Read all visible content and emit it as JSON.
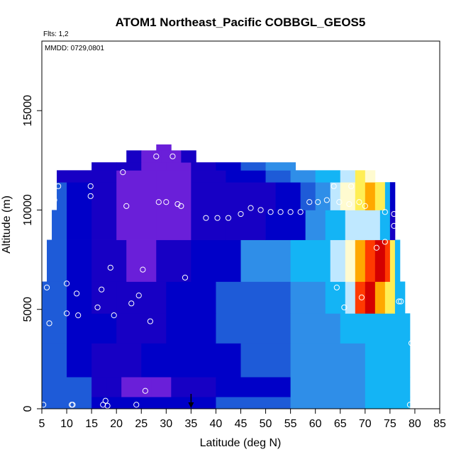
{
  "chart_data": {
    "type": "heatmap",
    "title": "ATOM1 Northeast_Pacific COBBGL_GEOS5",
    "notes": [
      "Flts: 1,2",
      "MMDD: 0729,0801"
    ],
    "xlabel": "Latitude (deg N)",
    "ylabel": "Altitude (m)",
    "xlim": [
      5,
      85
    ],
    "ylim": [
      0,
      18500
    ],
    "x_ticks": [
      5,
      10,
      15,
      20,
      25,
      30,
      35,
      40,
      45,
      50,
      55,
      60,
      65,
      70,
      75,
      80,
      85
    ],
    "y_ticks": [
      0,
      5000,
      10000,
      15000
    ],
    "grid": false,
    "colormap": {
      "description": "purple-blue-cyan-white-yellow-red",
      "stops": [
        "#6a1fd9",
        "#1700c4",
        "#0000c8",
        "#1e5bd8",
        "#2f8ee8",
        "#14b4f5",
        "#bfe8ff",
        "#fffbd0",
        "#ffee55",
        "#ffa800",
        "#ff3a00",
        "#d40000"
      ]
    },
    "layers": [
      {
        "alt": [
          0,
          600
        ],
        "x": [
          5,
          79
        ],
        "cells": [
          [
            5,
            3
          ],
          [
            10,
            3
          ],
          [
            15,
            2
          ],
          [
            22,
            2
          ],
          [
            30,
            2
          ],
          [
            40,
            3
          ],
          [
            55,
            4
          ],
          [
            70,
            5
          ],
          [
            79,
            5
          ]
        ]
      },
      {
        "alt": [
          600,
          1600
        ],
        "x": [
          5,
          79
        ],
        "cells": [
          [
            5,
            3
          ],
          [
            10,
            3
          ],
          [
            15,
            1
          ],
          [
            18,
            1
          ],
          [
            21,
            0
          ],
          [
            27,
            0
          ],
          [
            31,
            1
          ],
          [
            40,
            2
          ],
          [
            55,
            4
          ],
          [
            70,
            5
          ],
          [
            79,
            5
          ]
        ]
      },
      {
        "alt": [
          1600,
          3300
        ],
        "x": [
          5,
          79
        ],
        "cells": [
          [
            5,
            3
          ],
          [
            10,
            2
          ],
          [
            15,
            1
          ],
          [
            25,
            2
          ],
          [
            35,
            2
          ],
          [
            45,
            3
          ],
          [
            55,
            4
          ],
          [
            70,
            5
          ],
          [
            79,
            5
          ]
        ]
      },
      {
        "alt": [
          3300,
          4800
        ],
        "x": [
          5,
          79
        ],
        "cells": [
          [
            5,
            3
          ],
          [
            10,
            2
          ],
          [
            15,
            2
          ],
          [
            20,
            1
          ],
          [
            30,
            2
          ],
          [
            40,
            3
          ],
          [
            55,
            4
          ],
          [
            65,
            5
          ],
          [
            79,
            5
          ]
        ]
      },
      {
        "alt": [
          4800,
          6400
        ],
        "x": [
          5,
          78
        ],
        "cells": [
          [
            5,
            3
          ],
          [
            10,
            2
          ],
          [
            15,
            1
          ],
          [
            20,
            1
          ],
          [
            30,
            2
          ],
          [
            40,
            3
          ],
          [
            55,
            4
          ],
          [
            62,
            5
          ],
          [
            66,
            6
          ],
          [
            68,
            10
          ],
          [
            70,
            11
          ],
          [
            72,
            9
          ],
          [
            74,
            8
          ],
          [
            76,
            5
          ]
        ]
      },
      {
        "alt": [
          6400,
          8500
        ],
        "x": [
          6,
          77
        ],
        "cells": [
          [
            6,
            3
          ],
          [
            10,
            2
          ],
          [
            15,
            1
          ],
          [
            22,
            0
          ],
          [
            28,
            1
          ],
          [
            35,
            2
          ],
          [
            45,
            4
          ],
          [
            55,
            5
          ],
          [
            63,
            6
          ],
          [
            66,
            7
          ],
          [
            68,
            9
          ],
          [
            70,
            10
          ],
          [
            72,
            11
          ],
          [
            74,
            10
          ],
          [
            75,
            8
          ],
          [
            76,
            5
          ]
        ]
      },
      {
        "alt": [
          8500,
          10000
        ],
        "x": [
          7,
          76
        ],
        "cells": [
          [
            7,
            3
          ],
          [
            10,
            2
          ],
          [
            15,
            1
          ],
          [
            20,
            0
          ],
          [
            28,
            0
          ],
          [
            35,
            1
          ],
          [
            42,
            1
          ],
          [
            50,
            2
          ],
          [
            58,
            4
          ],
          [
            62,
            5
          ],
          [
            66,
            6
          ],
          [
            70,
            6
          ],
          [
            73,
            5
          ],
          [
            75,
            1
          ]
        ]
      },
      {
        "alt": [
          10000,
          11400
        ],
        "x": [
          8,
          76
        ],
        "cells": [
          [
            8,
            3
          ],
          [
            10,
            2
          ],
          [
            15,
            1
          ],
          [
            20,
            0
          ],
          [
            28,
            0
          ],
          [
            35,
            1
          ],
          [
            45,
            1
          ],
          [
            52,
            2
          ],
          [
            57,
            3
          ],
          [
            60,
            4
          ],
          [
            63,
            6
          ],
          [
            65,
            7
          ],
          [
            68,
            8
          ],
          [
            70,
            9
          ],
          [
            72,
            8
          ],
          [
            74,
            5
          ],
          [
            75,
            2
          ]
        ]
      },
      {
        "alt": [
          11400,
          12000
        ],
        "x": [
          8,
          72
        ],
        "cells": [
          [
            8,
            1
          ],
          [
            15,
            1
          ],
          [
            20,
            0
          ],
          [
            28,
            0
          ],
          [
            35,
            1
          ],
          [
            42,
            2
          ],
          [
            50,
            3
          ],
          [
            55,
            4
          ],
          [
            60,
            5
          ],
          [
            65,
            6
          ],
          [
            68,
            8
          ],
          [
            70,
            7
          ]
        ]
      },
      {
        "alt": [
          12000,
          12400
        ],
        "x": [
          15,
          56
        ],
        "cells": [
          [
            15,
            1
          ],
          [
            20,
            1
          ],
          [
            25,
            0
          ],
          [
            30,
            0
          ],
          [
            35,
            1
          ],
          [
            40,
            2
          ],
          [
            45,
            3
          ],
          [
            50,
            4
          ],
          [
            55,
            4
          ]
        ]
      },
      {
        "alt": [
          12400,
          13000
        ],
        "x": [
          22,
          36
        ],
        "cells": [
          [
            22,
            1
          ],
          [
            25,
            0
          ],
          [
            29,
            0
          ],
          [
            33,
            1
          ]
        ]
      },
      {
        "alt": [
          13000,
          13300
        ],
        "x": [
          28,
          31
        ],
        "cells": [
          [
            28,
            0
          ]
        ]
      }
    ],
    "flight_points": [
      [
        5.3,
        200
      ],
      [
        6,
        6100
      ],
      [
        6.5,
        4300
      ],
      [
        7.5,
        10500
      ],
      [
        8.3,
        11200
      ],
      [
        10,
        6300
      ],
      [
        10,
        4800
      ],
      [
        11,
        200
      ],
      [
        11.2,
        200
      ],
      [
        12,
        5800
      ],
      [
        12.3,
        4700
      ],
      [
        14.8,
        10700
      ],
      [
        14.8,
        11200
      ],
      [
        16.2,
        5100
      ],
      [
        17,
        6000
      ],
      [
        17.3,
        200
      ],
      [
        17.8,
        400
      ],
      [
        18.2,
        150
      ],
      [
        18.8,
        7100
      ],
      [
        19.5,
        4700
      ],
      [
        21.3,
        11900
      ],
      [
        22,
        10200
      ],
      [
        23,
        5300
      ],
      [
        24,
        200
      ],
      [
        24.5,
        5700
      ],
      [
        25.3,
        7000
      ],
      [
        25.8,
        900
      ],
      [
        26.8,
        4400
      ],
      [
        28,
        12700
      ],
      [
        28.5,
        10400
      ],
      [
        30,
        10400
      ],
      [
        31.3,
        12700
      ],
      [
        32.3,
        10300
      ],
      [
        33,
        10200
      ],
      [
        33.8,
        6600
      ],
      [
        38,
        9600
      ],
      [
        40.3,
        9600
      ],
      [
        42.5,
        9600
      ],
      [
        45,
        9800
      ],
      [
        47,
        10100
      ],
      [
        49,
        10000
      ],
      [
        51,
        9900
      ],
      [
        53,
        9900
      ],
      [
        55,
        9900
      ],
      [
        57,
        9900
      ],
      [
        58.8,
        10400
      ],
      [
        60.5,
        10400
      ],
      [
        62.3,
        10500
      ],
      [
        63.7,
        11200
      ],
      [
        64.8,
        10400
      ],
      [
        66.8,
        10300
      ],
      [
        67.2,
        11200
      ],
      [
        68.8,
        10400
      ],
      [
        69.3,
        5600
      ],
      [
        70,
        10200
      ],
      [
        72.3,
        8100
      ],
      [
        74,
        9900
      ],
      [
        74,
        8400
      ],
      [
        75.8,
        9800
      ],
      [
        75.8,
        9200
      ],
      [
        76.8,
        5400
      ],
      [
        77.2,
        5400
      ],
      [
        79,
        200
      ],
      [
        79.3,
        3300
      ],
      [
        79.8,
        3300
      ],
      [
        64.3,
        6100
      ],
      [
        65.8,
        5100
      ]
    ],
    "marker_x": 35
  }
}
